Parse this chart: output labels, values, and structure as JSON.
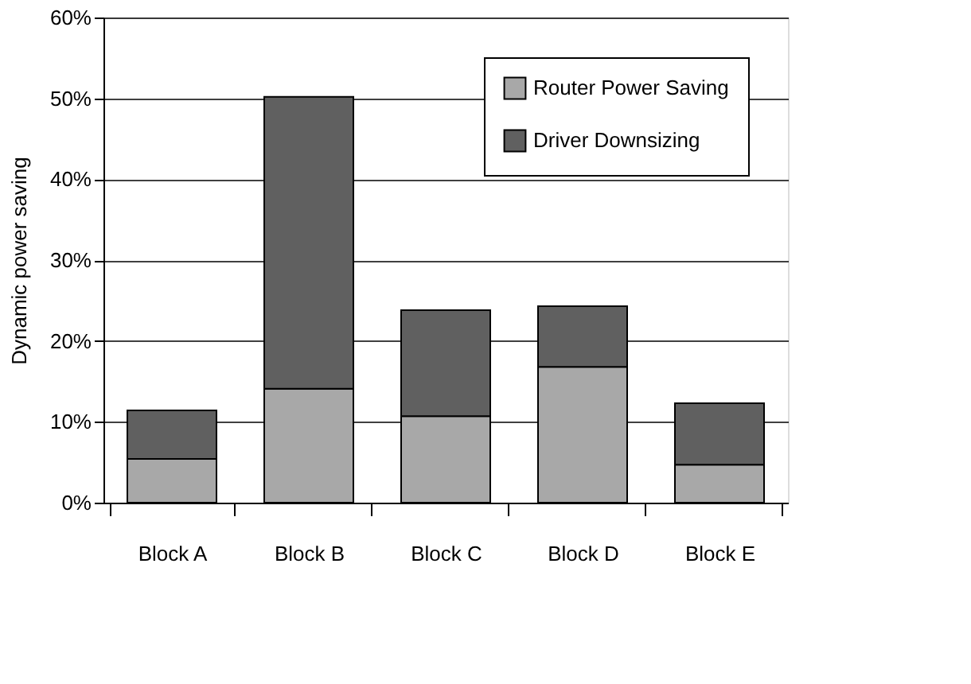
{
  "chart_data": {
    "type": "bar",
    "stacked": true,
    "ylabel": "Dynamic power saving",
    "categories": [
      "Block A",
      "Block B",
      "Block C",
      "Block D",
      "Block E"
    ],
    "series": [
      {
        "name": "Router Power Saving",
        "color": "#a8a8a8",
        "values": [
          5.4,
          14.1,
          10.7,
          16.8,
          4.7
        ]
      },
      {
        "name": "Driver Downsizing",
        "color": "#606060",
        "values": [
          6.0,
          36.1,
          13.1,
          7.5,
          7.6
        ]
      }
    ],
    "ylim": [
      0,
      60
    ],
    "yticks": [
      {
        "value": 0,
        "label": "0%"
      },
      {
        "value": 10,
        "label": "10%"
      },
      {
        "value": 20,
        "label": "20%"
      },
      {
        "value": 30,
        "label": "30%"
      },
      {
        "value": 40,
        "label": "40%"
      },
      {
        "value": 50,
        "label": "50%"
      },
      {
        "value": 60,
        "label": "60%"
      }
    ],
    "grid": "y",
    "legend": "top right"
  }
}
